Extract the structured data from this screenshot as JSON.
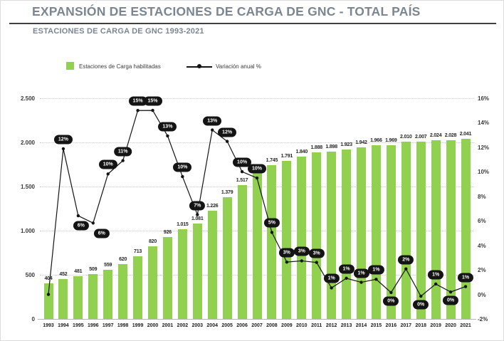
{
  "header": {
    "title": "EXPANSIÓN DE ESTACIONES DE CARGA DE GNC - TOTAL PAÍS",
    "subtitle": "ESTACIONES DE CARGA DE GNC 1993-2021"
  },
  "legend": {
    "bars_label": "Estaciones de Carga habilitadas",
    "line_label": "Variación anual %"
  },
  "colors": {
    "bar": "#92d050",
    "line": "#141414",
    "bubble_bg": "#141414",
    "bubble_text": "#ffffff",
    "title": "#7b8691",
    "grid": "#c8c8c8"
  },
  "chart_data": {
    "type": "bar",
    "title": "ESTACIONES DE CARGA DE GNC 1993-2021",
    "categories": [
      "1993",
      "1994",
      "1995",
      "1996",
      "1997",
      "1998",
      "1999",
      "2000",
      "2001",
      "2002",
      "2003",
      "2004",
      "2005",
      "2006",
      "2007",
      "2008",
      "2009",
      "2010",
      "2011",
      "2012",
      "2013",
      "2014",
      "2015",
      "2016",
      "2017",
      "2018",
      "2019",
      "2020",
      "2021"
    ],
    "series": [
      {
        "name": "Estaciones de Carga habilitadas",
        "type": "bar",
        "axis": "left",
        "values": [
          404,
          452,
          481,
          509,
          559,
          620,
          713,
          820,
          926,
          1015,
          1081,
          1226,
          1379,
          1517,
          1661,
          1745,
          1791,
          1840,
          1888,
          1898,
          1923,
          1942,
          1966,
          1969,
          2010,
          2007,
          2024,
          2028,
          2041
        ],
        "labels": [
          "404",
          "452",
          "481",
          "509",
          "559",
          "620",
          "713",
          "820",
          "926",
          "1.015",
          "1.081",
          "1.226",
          "1.379",
          "1.517",
          "1.661",
          "1.745",
          "1.791",
          "1.840",
          "1.888",
          "1.898",
          "1.923",
          "1.942",
          "1.966",
          "1.969",
          "2.010",
          "2.007",
          "2.024",
          "2.028",
          "2.041"
        ]
      },
      {
        "name": "Variación anual %",
        "type": "line",
        "axis": "right",
        "values": [
          null,
          12,
          6,
          6,
          10,
          11,
          15,
          15,
          13,
          10,
          7,
          13,
          12,
          10,
          10,
          5,
          3,
          3,
          3,
          1,
          1,
          1,
          1,
          0,
          2,
          0,
          1,
          0,
          1
        ],
        "labels": [
          "",
          "12%",
          "6%",
          "6%",
          "10%",
          "11%",
          "15%",
          "15%",
          "13%",
          "10%",
          "7%",
          "13%",
          "12%",
          "10%",
          "10%",
          "5%",
          "3%",
          "3%",
          "3%",
          "1%",
          "1%",
          "1%",
          "1%",
          "0%",
          "2%",
          "0%",
          "1%",
          "0%",
          "1%"
        ]
      }
    ],
    "left_axis": {
      "ticks": [
        "0",
        "500",
        "1.000",
        "1.500",
        "2.000",
        "2.500"
      ],
      "min": 0,
      "max": 2500
    },
    "right_axis": {
      "ticks": [
        "16%",
        "14%",
        "12%",
        "10%",
        "8%",
        "6%",
        "4%",
        "2%",
        "0%",
        "-2%"
      ],
      "min": -2,
      "max": 16
    },
    "layout": {
      "grid": "dotted-horizontal",
      "legend_position": "top-left",
      "bubble_offsets": {
        "1995": [
          4,
          14
        ],
        "1996": [
          12,
          15
        ],
        "2016": [
          0,
          12
        ],
        "2018": [
          0,
          12
        ],
        "2020": [
          0,
          12
        ]
      },
      "bubble_default_offset": [
        0,
        -13
      ]
    }
  }
}
